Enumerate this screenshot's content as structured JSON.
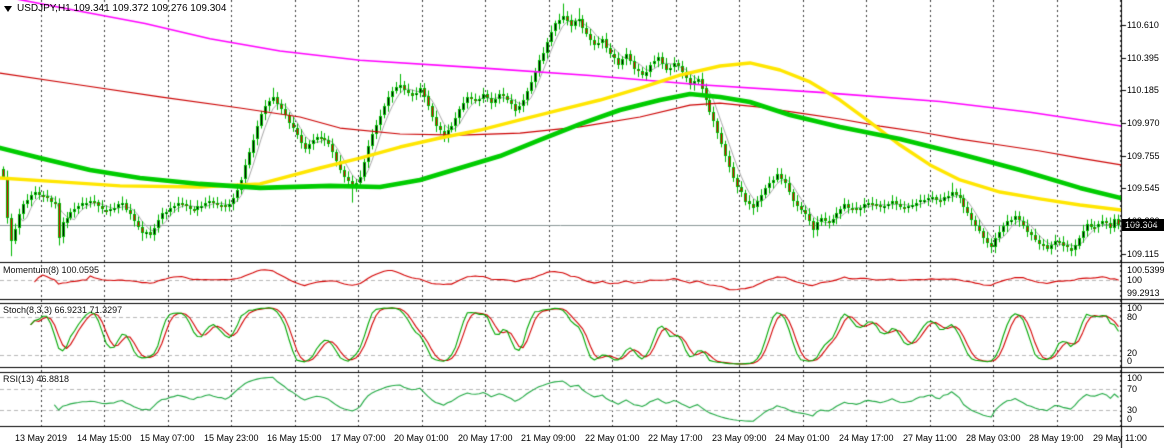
{
  "window": {
    "title": "USDJPY,H1 109.341 109.372 109.276 109.304",
    "symbol_period": "USDJPY,H1"
  },
  "price_scale": {
    "ticks": [
      "110.610",
      "110.395",
      "110.185",
      "109.970",
      "109.755",
      "109.545",
      "109.330",
      "109.115"
    ],
    "current": "109.304"
  },
  "time_axis": {
    "labels": [
      "13 May 2019",
      "14 May 15:00",
      "15 May 07:00",
      "15 May 23:00",
      "16 May 15:00",
      "17 May 07:00",
      "20 May 01:00",
      "20 May 17:00",
      "21 May 09:00",
      "22 May 01:00",
      "22 May 17:00",
      "23 May 09:00",
      "24 May 01:00",
      "24 May 17:00",
      "27 May 11:00",
      "28 May 03:00",
      "28 May 19:00",
      "29 May 11:00"
    ]
  },
  "indicators": {
    "momentum": {
      "label": "Momentum(8) 100.0595",
      "scale": [
        "100.5399",
        "100",
        "99.2913"
      ]
    },
    "stochastic": {
      "label": "Stoch(8,3,3) 66.9231 71.3297",
      "scale": [
        "100",
        "80",
        "20",
        "0"
      ]
    },
    "rsi": {
      "label": "RSI(13) 46.8818",
      "scale": [
        "100",
        "70",
        "30",
        "0"
      ]
    }
  },
  "colors": {
    "background": "#ffffff",
    "axis": "#000000",
    "grid_vertical": "#3c3c3c",
    "level_line": "#b8b8b8",
    "candle_outline": "#00b800",
    "candle_bull_fill": "#000000",
    "candle_bear_fill": "#e60000",
    "ma_magenta": "#ff00ff",
    "ma_red": "#cc0000",
    "ma_yellow": "#ffe600",
    "ma_green": "#00cc00",
    "ma_gray": "#a8a8a8",
    "momentum_line": "#d40000",
    "stoch_main": "#00a800",
    "stoch_signal": "#d40000",
    "rsi_line": "#22aa44",
    "price_line": "#8a9898",
    "price_tag_bg": "#000000",
    "price_tag_text": "#ffffff"
  },
  "chart_data": {
    "type": "candlestick",
    "title": "USDJPY H1",
    "symbol": "USDJPY",
    "timeframe": "H1",
    "quote": {
      "open": 109.341,
      "high": 109.372,
      "low": 109.276,
      "close": 109.304
    },
    "current_price": 109.304,
    "y_ticks": [
      110.61,
      110.395,
      110.185,
      109.97,
      109.755,
      109.545,
      109.33,
      109.115
    ],
    "x_labels": [
      "13 May 2019",
      "14 May 15:00",
      "15 May 07:00",
      "15 May 23:00",
      "16 May 15:00",
      "17 May 07:00",
      "20 May 01:00",
      "20 May 17:00",
      "21 May 09:00",
      "22 May 01:00",
      "22 May 17:00",
      "23 May 09:00",
      "24 May 01:00",
      "24 May 17:00",
      "27 May 11:00",
      "28 May 03:00",
      "28 May 19:00",
      "29 May 11:00"
    ],
    "bars_per_gridline": 16,
    "bar_count": 282,
    "close_anchors": [
      [
        0,
        109.62
      ],
      [
        1,
        109.35
      ],
      [
        2,
        109.2
      ],
      [
        3,
        109.28
      ],
      [
        5,
        109.44
      ],
      [
        8,
        109.52
      ],
      [
        11,
        109.48
      ],
      [
        13,
        109.45
      ],
      [
        14,
        109.22
      ],
      [
        15,
        109.32
      ],
      [
        18,
        109.41
      ],
      [
        22,
        109.46
      ],
      [
        26,
        109.4
      ],
      [
        30,
        109.45
      ],
      [
        33,
        109.33
      ],
      [
        35,
        109.25
      ],
      [
        37,
        109.24
      ],
      [
        40,
        109.38
      ],
      [
        44,
        109.45
      ],
      [
        48,
        109.4
      ],
      [
        52,
        109.46
      ],
      [
        56,
        109.42
      ],
      [
        58,
        109.48
      ],
      [
        60,
        109.6
      ],
      [
        62,
        109.78
      ],
      [
        64,
        109.95
      ],
      [
        66,
        110.08
      ],
      [
        68,
        110.14
      ],
      [
        70,
        110.06
      ],
      [
        73,
        109.94
      ],
      [
        76,
        109.8
      ],
      [
        79,
        109.88
      ],
      [
        82,
        109.83
      ],
      [
        84,
        109.72
      ],
      [
        86,
        109.62
      ],
      [
        88,
        109.56
      ],
      [
        90,
        109.62
      ],
      [
        92,
        109.82
      ],
      [
        94,
        109.96
      ],
      [
        96,
        110.08
      ],
      [
        98,
        110.18
      ],
      [
        100,
        110.22
      ],
      [
        103,
        110.15
      ],
      [
        105,
        110.2
      ],
      [
        107,
        110.08
      ],
      [
        109,
        109.95
      ],
      [
        111,
        109.88
      ],
      [
        113,
        109.95
      ],
      [
        115,
        110.06
      ],
      [
        117,
        110.14
      ],
      [
        119,
        110.12
      ],
      [
        121,
        110.16
      ],
      [
        123,
        110.1
      ],
      [
        125,
        110.16
      ],
      [
        127,
        110.12
      ],
      [
        129,
        110.05
      ],
      [
        131,
        110.12
      ],
      [
        133,
        110.24
      ],
      [
        135,
        110.38
      ],
      [
        137,
        110.5
      ],
      [
        139,
        110.62
      ],
      [
        141,
        110.67
      ],
      [
        143,
        110.6
      ],
      [
        145,
        110.65
      ],
      [
        147,
        110.55
      ],
      [
        149,
        110.48
      ],
      [
        151,
        110.52
      ],
      [
        153,
        110.42
      ],
      [
        155,
        110.35
      ],
      [
        157,
        110.42
      ],
      [
        159,
        110.32
      ],
      [
        161,
        110.28
      ],
      [
        163,
        110.35
      ],
      [
        165,
        110.4
      ],
      [
        167,
        110.32
      ],
      [
        169,
        110.36
      ],
      [
        171,
        110.3
      ],
      [
        173,
        110.22
      ],
      [
        175,
        110.26
      ],
      [
        177,
        110.12
      ],
      [
        179,
        109.98
      ],
      [
        181,
        109.83
      ],
      [
        183,
        109.68
      ],
      [
        185,
        109.55
      ],
      [
        187,
        109.46
      ],
      [
        189,
        109.42
      ],
      [
        191,
        109.5
      ],
      [
        193,
        109.58
      ],
      [
        195,
        109.64
      ],
      [
        197,
        109.58
      ],
      [
        199,
        109.46
      ],
      [
        201,
        109.4
      ],
      [
        203,
        109.33
      ],
      [
        204,
        109.27
      ],
      [
        206,
        109.35
      ],
      [
        208,
        109.32
      ],
      [
        210,
        109.38
      ],
      [
        212,
        109.44
      ],
      [
        215,
        109.4
      ],
      [
        218,
        109.45
      ],
      [
        221,
        109.42
      ],
      [
        224,
        109.46
      ],
      [
        227,
        109.42
      ],
      [
        230,
        109.45
      ],
      [
        233,
        109.48
      ],
      [
        236,
        109.46
      ],
      [
        239,
        109.52
      ],
      [
        241,
        109.48
      ],
      [
        243,
        109.38
      ],
      [
        245,
        109.3
      ],
      [
        247,
        109.22
      ],
      [
        249,
        109.16
      ],
      [
        251,
        109.26
      ],
      [
        253,
        109.33
      ],
      [
        255,
        109.36
      ],
      [
        257,
        109.3
      ],
      [
        259,
        109.24
      ],
      [
        261,
        109.18
      ],
      [
        263,
        109.15
      ],
      [
        265,
        109.2
      ],
      [
        267,
        109.17
      ],
      [
        269,
        109.14
      ],
      [
        271,
        109.22
      ],
      [
        273,
        109.31
      ],
      [
        275,
        109.29
      ],
      [
        277,
        109.33
      ],
      [
        279,
        109.28
      ],
      [
        280,
        109.341
      ],
      [
        281,
        109.304
      ]
    ],
    "wick_lows": [
      [
        2,
        109.1
      ],
      [
        14,
        109.17
      ],
      [
        35,
        109.2
      ],
      [
        88,
        109.45
      ],
      [
        189,
        109.37
      ],
      [
        204,
        109.22
      ],
      [
        249,
        109.12
      ],
      [
        269,
        109.1
      ]
    ],
    "wick_highs": [
      [
        68,
        110.2
      ],
      [
        100,
        110.29
      ],
      [
        141,
        110.75
      ],
      [
        145,
        110.72
      ],
      [
        239,
        109.58
      ]
    ],
    "overlays": [
      {
        "name": "ma-magenta-slow",
        "color": "#ff00ff",
        "width": 1.6,
        "points": [
          [
            0,
            110.8
          ],
          [
            80,
            110.7
          ],
          [
            145,
            110.62
          ],
          [
            210,
            110.52
          ],
          [
            280,
            110.44
          ],
          [
            360,
            110.38
          ],
          [
            480,
            110.33
          ],
          [
            590,
            110.28
          ],
          [
            700,
            110.22
          ],
          [
            820,
            110.17
          ],
          [
            940,
            110.11
          ],
          [
            1030,
            110.04
          ],
          [
            1121,
            109.95
          ]
        ]
      },
      {
        "name": "ma-red",
        "color": "#cc0000",
        "width": 1.2,
        "points": [
          [
            0,
            110.296
          ],
          [
            80,
            110.218
          ],
          [
            160,
            110.14
          ],
          [
            240,
            110.068
          ],
          [
            300,
            110.009
          ],
          [
            340,
            109.937
          ],
          [
            400,
            109.898
          ],
          [
            460,
            109.891
          ],
          [
            520,
            109.904
          ],
          [
            580,
            109.944
          ],
          [
            640,
            110.009
          ],
          [
            690,
            110.087
          ],
          [
            720,
            110.1
          ],
          [
            760,
            110.074
          ],
          [
            800,
            110.035
          ],
          [
            840,
            109.996
          ],
          [
            880,
            109.95
          ],
          [
            920,
            109.911
          ],
          [
            960,
            109.865
          ],
          [
            1000,
            109.826
          ],
          [
            1040,
            109.787
          ],
          [
            1080,
            109.741
          ],
          [
            1121,
            109.696
          ]
        ]
      },
      {
        "name": "ma-yellow",
        "color": "#ffe600",
        "width": 3.4,
        "points": [
          [
            0,
            109.611
          ],
          [
            60,
            109.585
          ],
          [
            120,
            109.559
          ],
          [
            200,
            109.552
          ],
          [
            260,
            109.572
          ],
          [
            320,
            109.676
          ],
          [
            360,
            109.741
          ],
          [
            400,
            109.813
          ],
          [
            440,
            109.872
          ],
          [
            480,
            109.924
          ],
          [
            520,
            109.99
          ],
          [
            560,
            110.055
          ],
          [
            600,
            110.12
          ],
          [
            640,
            110.198
          ],
          [
            680,
            110.283
          ],
          [
            720,
            110.342
          ],
          [
            750,
            110.362
          ],
          [
            780,
            110.316
          ],
          [
            810,
            110.238
          ],
          [
            840,
            110.12
          ],
          [
            870,
            109.976
          ],
          [
            900,
            109.826
          ],
          [
            930,
            109.696
          ],
          [
            960,
            109.598
          ],
          [
            1000,
            109.519
          ],
          [
            1040,
            109.474
          ],
          [
            1080,
            109.434
          ],
          [
            1121,
            109.402
          ]
        ]
      },
      {
        "name": "ma-green-thick",
        "color": "#00cc00",
        "width": 4.6,
        "points": [
          [
            0,
            109.807
          ],
          [
            40,
            109.741
          ],
          [
            90,
            109.663
          ],
          [
            140,
            109.611
          ],
          [
            200,
            109.572
          ],
          [
            260,
            109.546
          ],
          [
            330,
            109.559
          ],
          [
            380,
            109.552
          ],
          [
            420,
            109.598
          ],
          [
            460,
            109.676
          ],
          [
            500,
            109.754
          ],
          [
            540,
            109.859
          ],
          [
            580,
            109.963
          ],
          [
            620,
            110.055
          ],
          [
            660,
            110.12
          ],
          [
            690,
            110.159
          ],
          [
            720,
            110.14
          ],
          [
            750,
            110.107
          ],
          [
            790,
            110.022
          ],
          [
            840,
            109.944
          ],
          [
            900,
            109.865
          ],
          [
            960,
            109.767
          ],
          [
            1020,
            109.663
          ],
          [
            1080,
            109.546
          ],
          [
            1121,
            109.48
          ]
        ]
      },
      {
        "name": "ma-gray-fast",
        "color": "#a8a8a8",
        "width": 1,
        "computed": "sma5"
      }
    ],
    "sub_indicators": {
      "momentum": {
        "period": 8,
        "last_value": 100.0595,
        "range": [
          99.2913,
          100.5399
        ],
        "level": 100
      },
      "stochastic": {
        "params": [
          8,
          3,
          3
        ],
        "last_main": 66.9231,
        "last_signal": 71.3297,
        "levels": [
          80,
          20
        ],
        "range": [
          0,
          100
        ]
      },
      "rsi": {
        "period": 13,
        "last_value": 46.8818,
        "levels": [
          70,
          30
        ],
        "range": [
          0,
          100
        ]
      }
    }
  }
}
